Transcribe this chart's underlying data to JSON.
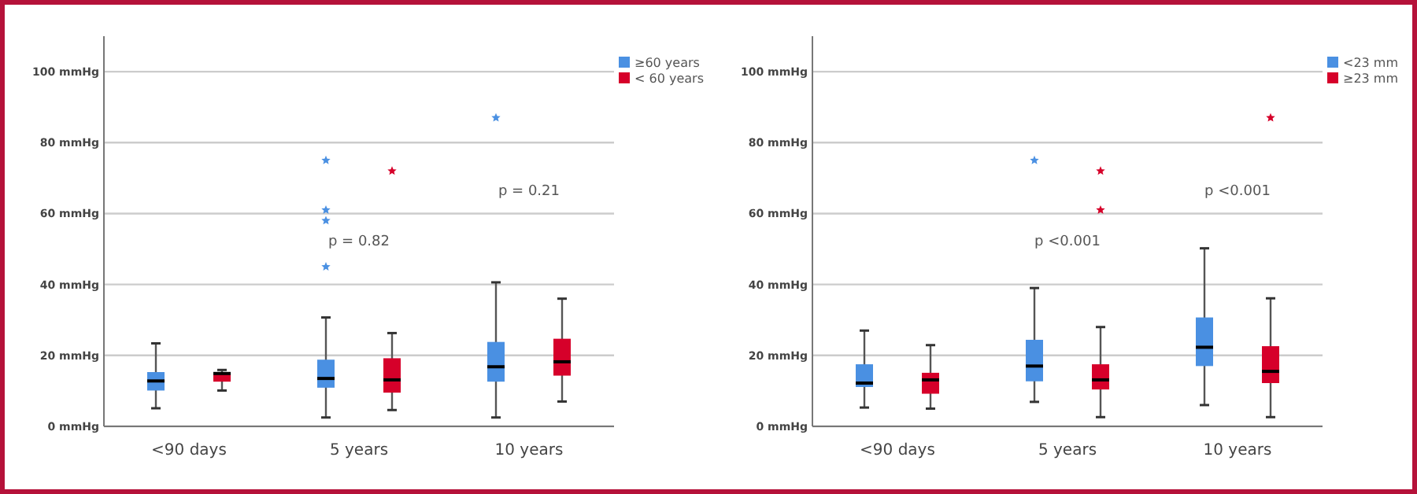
{
  "chart_data": [
    {
      "type": "box",
      "categories": [
        "<90 days",
        "5 years",
        "10 years"
      ],
      "ylim": [
        0,
        110
      ],
      "yticks": [
        {
          "value": 0,
          "label": "0 mmHg"
        },
        {
          "value": 20,
          "label": "20 mmHg"
        },
        {
          "value": 40,
          "label": "40 mmHg"
        },
        {
          "value": 60,
          "label": "60 mmHg"
        },
        {
          "value": 80,
          "label": "80 mmHg"
        },
        {
          "value": 100,
          "label": "100 mmHg"
        }
      ],
      "grid": "y",
      "legend": "top right",
      "annotations": [
        "p = 0.82",
        "p = 0.21"
      ],
      "series": [
        {
          "name": "≥60 years",
          "color": "#4a90e2",
          "boxes": [
            {
              "low": 5.1,
              "q1": 10.1,
              "median": 12.8,
              "q3": 15.3,
              "high": 23.4
            },
            {
              "low": 2.5,
              "q1": 10.9,
              "median": 13.5,
              "q3": 18.8,
              "high": 30.7,
              "outliers": [
                75,
                61,
                58,
                45
              ]
            },
            {
              "low": 2.5,
              "q1": 12.6,
              "median": 16.8,
              "q3": 23.8,
              "high": 40.6,
              "outliers": [
                87
              ]
            }
          ]
        },
        {
          "name": "< 60 years",
          "color": "#d6002a",
          "boxes": [
            {
              "low": 10.1,
              "q1": 12.6,
              "median": 14.9,
              "q3": 15.3,
              "high": 15.9
            },
            {
              "low": 4.6,
              "q1": 9.5,
              "median": 13.1,
              "q3": 19.2,
              "high": 26.3,
              "outliers": [
                72
              ]
            },
            {
              "low": 7,
              "q1": 14.3,
              "median": 18.2,
              "q3": 24.7,
              "high": 36
            }
          ]
        }
      ]
    },
    {
      "type": "box",
      "categories": [
        "<90 days",
        "5 years",
        "10 years"
      ],
      "ylim": [
        0,
        110
      ],
      "yticks": [
        {
          "value": 0,
          "label": "0 mmHg"
        },
        {
          "value": 20,
          "label": "20 mmHg"
        },
        {
          "value": 40,
          "label": "40 mmHg"
        },
        {
          "value": 60,
          "label": "60 mmHg"
        },
        {
          "value": 80,
          "label": "80 mmHg"
        },
        {
          "value": 100,
          "label": "100 mmHg"
        }
      ],
      "grid": "y",
      "legend": "top right",
      "annotations": [
        "p <0.001",
        "p <0.001"
      ],
      "series": [
        {
          "name": "<23 mm",
          "color": "#4a90e2",
          "boxes": [
            {
              "low": 5.3,
              "q1": 11.1,
              "median": 12.2,
              "q3": 17.5,
              "high": 27
            },
            {
              "low": 6.9,
              "q1": 12.7,
              "median": 17,
              "q3": 24.4,
              "high": 39,
              "outliers": [
                75
              ]
            },
            {
              "low": 6,
              "q1": 17,
              "median": 22.3,
              "q3": 30.7,
              "high": 50.2
            }
          ]
        },
        {
          "name": "≥23 mm",
          "color": "#d6002a",
          "boxes": [
            {
              "low": 5,
              "q1": 9.2,
              "median": 13.1,
              "q3": 15.1,
              "high": 22.9
            },
            {
              "low": 2.6,
              "q1": 10.4,
              "median": 13.1,
              "q3": 17.5,
              "high": 28,
              "outliers": [
                72,
                61
              ]
            },
            {
              "low": 2.6,
              "q1": 12.2,
              "median": 15.5,
              "q3": 22.6,
              "high": 36.1,
              "outliers": [
                87
              ]
            }
          ]
        }
      ]
    }
  ]
}
